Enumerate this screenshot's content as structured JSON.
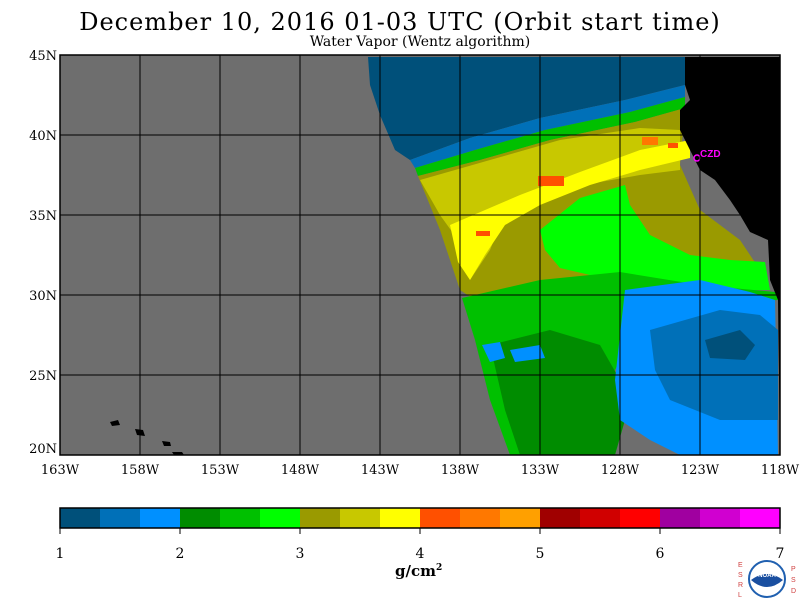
{
  "header": {
    "title": "December 10, 2016  01-03 UTC  (Orbit start time)",
    "subtitle": "Water Vapor (Wentz algorithm)"
  },
  "map": {
    "lat_labels": [
      "45N",
      "40N",
      "35N",
      "30N",
      "25N",
      "20N"
    ],
    "lon_labels": [
      "163W",
      "158W",
      "153W",
      "148W",
      "143W",
      "138W",
      "133W",
      "128W",
      "123W",
      "118W"
    ],
    "station_label": "CZD",
    "colors": {
      "no_data": "#6e6e6e",
      "land": "#000000",
      "station": "#ff00ff"
    }
  },
  "colorbar": {
    "ticks": [
      "1",
      "2",
      "3",
      "4",
      "5",
      "6",
      "7"
    ],
    "units_base": "g/cm",
    "units_exp": "2",
    "colors": [
      "#00507a",
      "#0070b8",
      "#0090ff",
      "#008c00",
      "#00c000",
      "#00ff00",
      "#9a9a00",
      "#c8c800",
      "#ffff00",
      "#ff5000",
      "#ff7800",
      "#ffa000",
      "#a00000",
      "#d00000",
      "#ff0000",
      "#a000a0",
      "#d000d0",
      "#ff00ff"
    ]
  },
  "logo": {
    "left_letters": "ESRL",
    "right_letters": "PSD",
    "center_text": "NOAA"
  }
}
